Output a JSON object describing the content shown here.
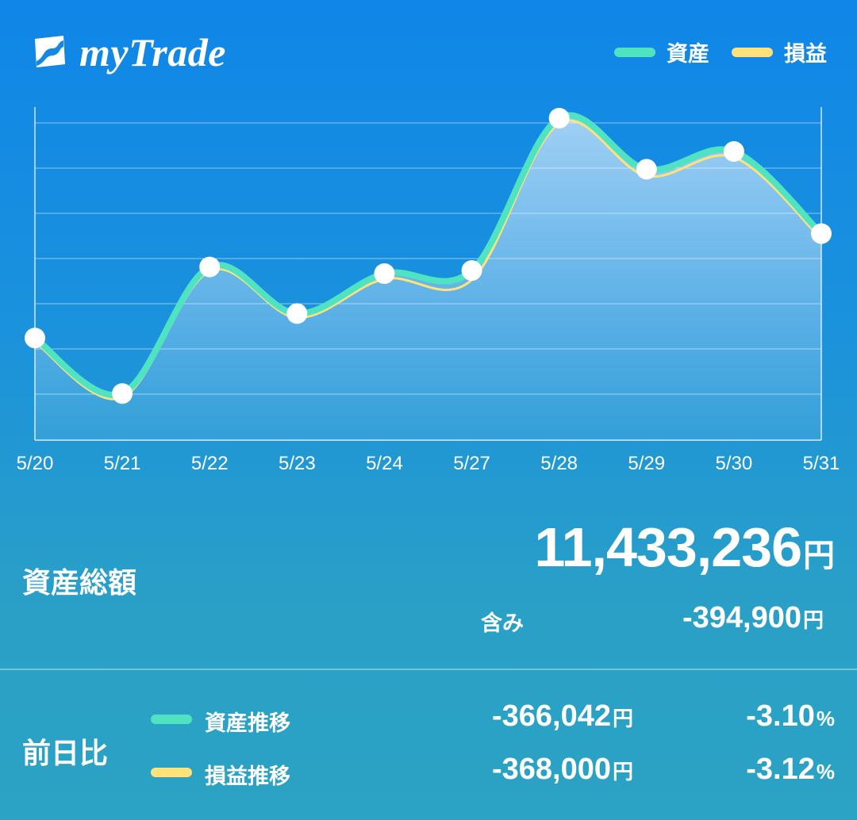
{
  "app": {
    "name": "myTrade"
  },
  "legend": [
    {
      "label": "資産",
      "color": "#4fe3c1"
    },
    {
      "label": "損益",
      "color": "#ffe27a"
    }
  ],
  "chart_data": {
    "type": "line",
    "categories": [
      "5/20",
      "5/21",
      "5/22",
      "5/23",
      "5/24",
      "5/27",
      "5/28",
      "5/29",
      "5/30",
      "5/31"
    ],
    "series": [
      {
        "name": "資産",
        "color": "#4fe3c1",
        "values": [
          1.8,
          0.55,
          3.4,
          2.35,
          3.25,
          3.32,
          6.75,
          5.6,
          6.0,
          4.15
        ]
      },
      {
        "name": "損益",
        "color": "#ffe27a",
        "values": [
          1.78,
          0.53,
          3.38,
          2.33,
          3.2,
          3.18,
          6.7,
          5.52,
          5.94,
          4.1
        ]
      }
    ],
    "ylim": [
      -0.5,
      7.0
    ],
    "grid": true,
    "legend_position": "top-right"
  },
  "summary": {
    "total_label": "資産総額",
    "total_value": "11,433,236",
    "total_unit": "円",
    "included_label": "含み",
    "included_value": "-394,900",
    "included_unit": "円"
  },
  "compare": {
    "label": "前日比",
    "rows": [
      {
        "label": "資産推移",
        "color": "#4fe3c1",
        "amount": "-366,042",
        "amount_unit": "円",
        "pct": "-3.10",
        "pct_unit": "%"
      },
      {
        "label": "損益推移",
        "color": "#ffe27a",
        "amount": "-368,000",
        "amount_unit": "円",
        "pct": "-3.12",
        "pct_unit": "%"
      }
    ]
  }
}
